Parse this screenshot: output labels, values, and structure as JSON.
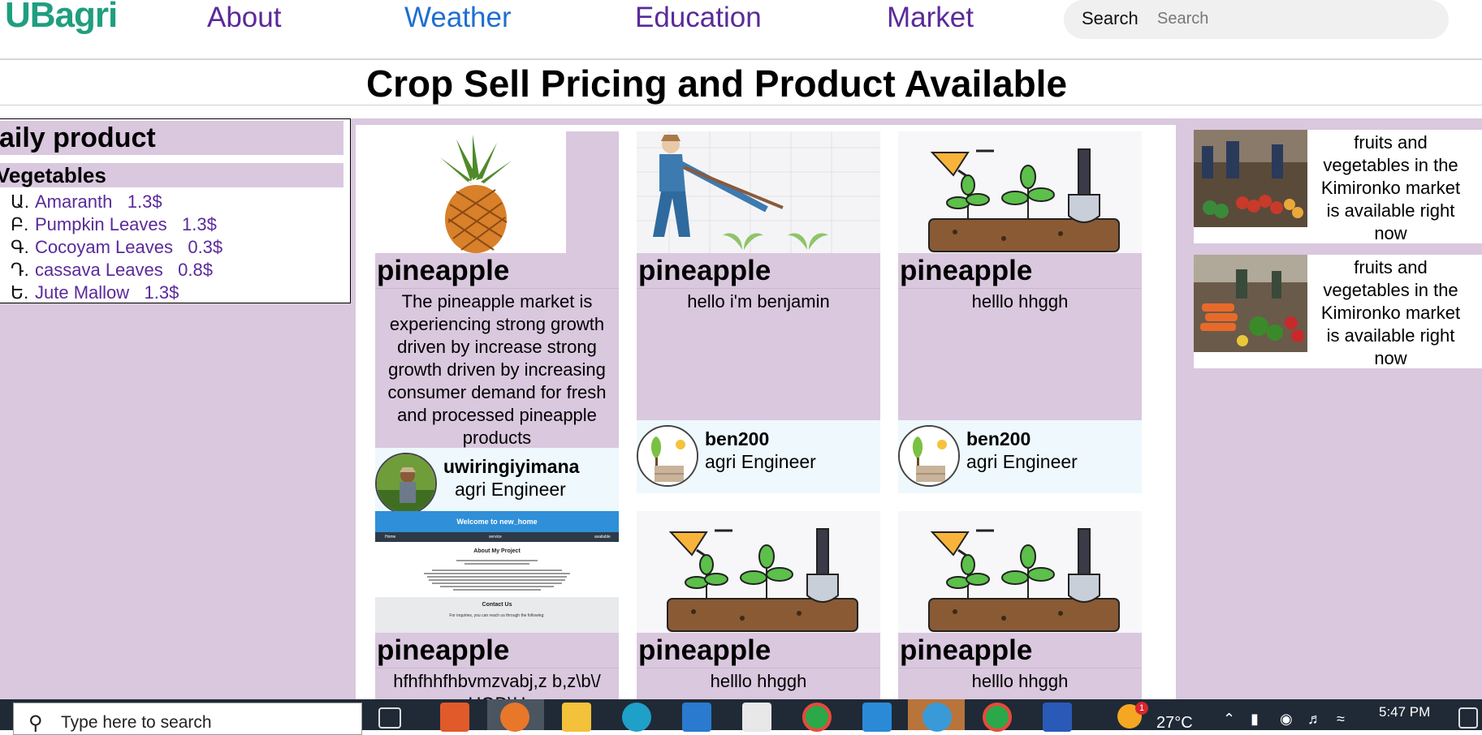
{
  "nav": {
    "logo": "UBagri",
    "links": [
      "About",
      "Weather",
      "Education",
      "Market"
    ],
    "search_label": "Search",
    "search_placeholder": "Search"
  },
  "page_title": "Crop Sell Pricing and Product Available",
  "daily": {
    "title": "aily product",
    "category": "Vegetables",
    "items": [
      {
        "marker": "Ա.",
        "name": "Amaranth",
        "price": "1.3$"
      },
      {
        "marker": "Բ.",
        "name": "Pumpkin Leaves",
        "price": "1.3$"
      },
      {
        "marker": "Գ.",
        "name": "Cocoyam Leaves",
        "price": "0.3$"
      },
      {
        "marker": "Դ.",
        "name": "cassava Leaves",
        "price": "0.8$"
      },
      {
        "marker": "Ե.",
        "name": "Jute Mallow",
        "price": "1.3$"
      }
    ]
  },
  "cards": [
    {
      "title": "pineapple",
      "image_icon": "pineapple-image",
      "desc": "The pineapple market is experiencing strong growth driven by increase strong growth driven by increasing consumer demand for fresh and processed pineapple products",
      "author": "uwiringiyimana",
      "role": "agri Engineer"
    },
    {
      "title": "pineapple",
      "image_icon": "farmer-image",
      "desc": "hello i'm benjamin",
      "author": "ben200",
      "role": "agri Engineer"
    },
    {
      "title": "pineapple",
      "image_icon": "plants-image",
      "desc": "helllo hhggh",
      "author": "ben200",
      "role": "agri Engineer"
    },
    {
      "title": "pineapple",
      "image_icon": "website-screenshot-image",
      "desc": "hfhfhhfhbvmzvabj,z b,z\\b\\/ HOD\\H"
    },
    {
      "title": "pineapple",
      "image_icon": "plants-image",
      "desc": "helllo hhggh"
    },
    {
      "title": "pineapple",
      "image_icon": "plants-image",
      "desc": "helllo hhggh"
    }
  ],
  "screenshot": {
    "header": "Welcome to new_home",
    "menu": [
      "Home",
      "service",
      "available"
    ],
    "about_title": "About My Project",
    "contact_title": "Contact Us",
    "contact_text": "For inquiries, you can reach us through the following:"
  },
  "ads": [
    {
      "text": "fruits and vegetables in the Kimironko market is available right now"
    },
    {
      "text": "fruits and vegetables in the Kimironko market is available right now"
    }
  ],
  "taskbar": {
    "search_placeholder": "Type here to search",
    "temperature": "27°C",
    "time": "5:47 PM",
    "badge": "1"
  }
}
